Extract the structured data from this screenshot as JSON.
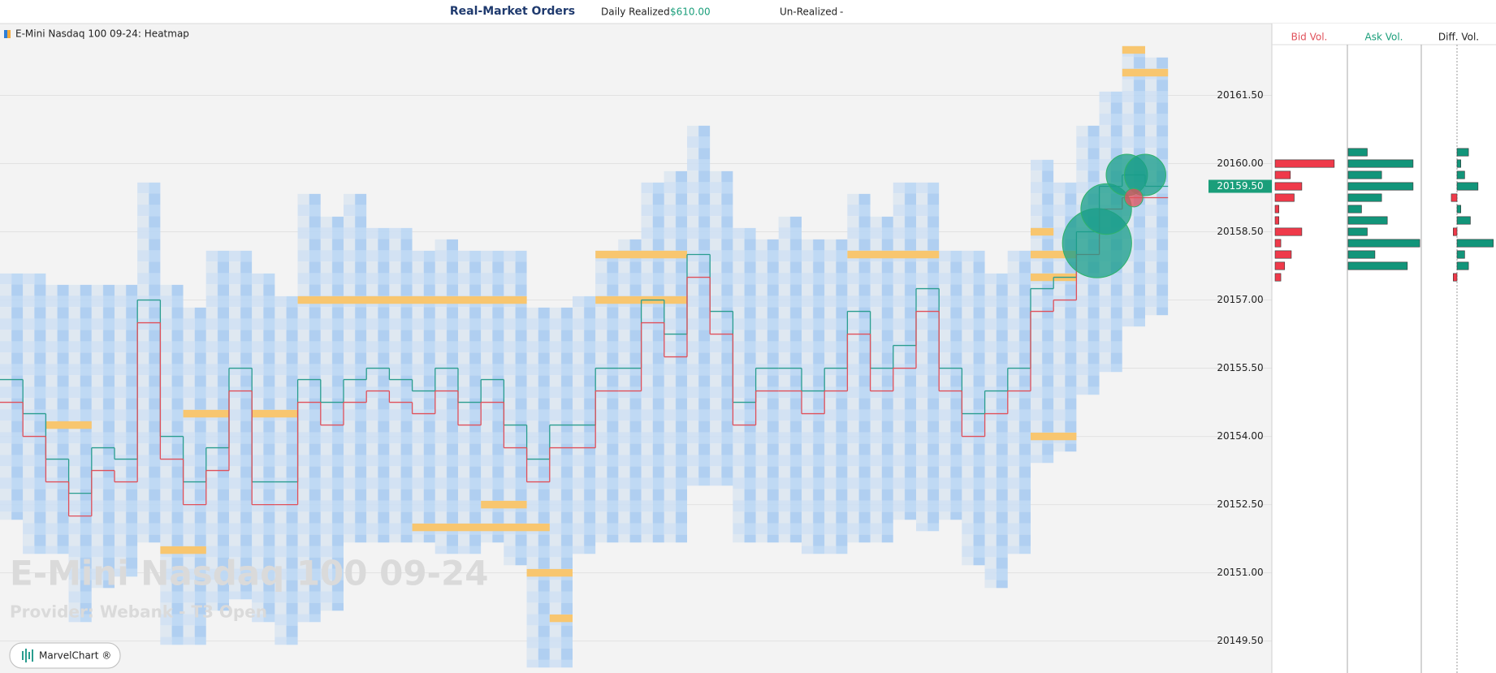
{
  "header": {
    "title": "Real-Market Orders",
    "realized_label": "Daily Realized",
    "realized_value": "$610.00",
    "unrealized_label": "Un-Realized",
    "unrealized_value": "-"
  },
  "chart_data": {
    "type": "heatmap",
    "title": "E-Mini Nasdaq 100 09-24: Heatmap",
    "ylim": [
      20149.0,
      20162.75
    ],
    "yticks": [
      {
        "value": 20161.5,
        "label": "20161.50"
      },
      {
        "value": 20160,
        "label": "20160.00"
      },
      {
        "value": 20158.5,
        "label": "20158.50"
      },
      {
        "value": 20157,
        "label": "20157.00"
      },
      {
        "value": 20155.5,
        "label": "20155.50"
      },
      {
        "value": 20154,
        "label": "20154.00"
      },
      {
        "value": 20152.5,
        "label": "20152.50"
      },
      {
        "value": 20151,
        "label": "20151.00"
      },
      {
        "value": 20149.5,
        "label": "20149.50"
      }
    ],
    "grid": true,
    "high": [
      20157.5,
      20157.5,
      20157.25,
      20157.25,
      20157.25,
      20157.25,
      20159.5,
      20157.25,
      20156.75,
      20158.0,
      20158.0,
      20157.5,
      20157.0,
      20159.25,
      20158.75,
      20159.25,
      20158.5,
      20158.5,
      20158.0,
      20158.25,
      20158.0,
      20158.0,
      20158.0,
      20156.75,
      20156.75,
      20157.0,
      20158.0,
      20158.25,
      20159.5,
      20159.75,
      20160.75,
      20159.75,
      20158.5,
      20158.25,
      20158.75,
      20158.25,
      20158.25,
      20159.25,
      20158.75,
      20159.5,
      20159.5,
      20158.0,
      20158.0,
      20157.5,
      20158.0,
      20160.0,
      20159.5,
      20160.75,
      20161.5,
      20162.5,
      20162.25
    ],
    "low": [
      20152.25,
      20151.5,
      20151.5,
      20150.0,
      20150.75,
      20151.0,
      20151.75,
      20149.5,
      20149.5,
      20150.25,
      20150.5,
      20150.0,
      20149.5,
      20150.0,
      20150.25,
      20151.75,
      20151.75,
      20151.75,
      20151.75,
      20151.5,
      20151.5,
      20151.75,
      20151.25,
      20149.0,
      20149.0,
      20151.5,
      20151.75,
      20151.75,
      20151.75,
      20151.75,
      20153.0,
      20153.0,
      20151.75,
      20151.75,
      20151.75,
      20151.5,
      20151.5,
      20151.75,
      20151.75,
      20152.25,
      20152.0,
      20152.25,
      20151.25,
      20150.75,
      20151.5,
      20153.5,
      20153.75,
      20155.0,
      20155.5,
      20156.5,
      20156.75
    ],
    "orders": [
      {
        "price": 20157.0,
        "start": 13,
        "end": 23
      },
      {
        "price": 20157.0,
        "start": 26,
        "end": 30
      },
      {
        "price": 20158.0,
        "start": 26,
        "end": 30
      },
      {
        "price": 20158.0,
        "start": 37,
        "end": 41
      },
      {
        "price": 20154.5,
        "start": 8,
        "end": 10
      },
      {
        "price": 20154.5,
        "start": 11,
        "end": 13
      },
      {
        "price": 20152.0,
        "start": 18,
        "end": 24
      },
      {
        "price": 20152.5,
        "start": 21,
        "end": 23
      },
      {
        "price": 20151.0,
        "start": 23,
        "end": 25
      },
      {
        "price": 20150.0,
        "start": 24,
        "end": 25
      },
      {
        "price": 20158.5,
        "start": 45,
        "end": 46
      },
      {
        "price": 20158.0,
        "start": 45,
        "end": 47
      },
      {
        "price": 20157.5,
        "start": 45,
        "end": 47
      },
      {
        "price": 20154.0,
        "start": 45,
        "end": 47
      },
      {
        "price": 20162.0,
        "start": 49,
        "end": 51
      },
      {
        "price": 20162.5,
        "start": 49,
        "end": 50
      },
      {
        "price": 20151.5,
        "start": 7,
        "end": 9
      },
      {
        "price": 20154.25,
        "start": 2,
        "end": 4
      }
    ],
    "series": [
      {
        "name": "Ask",
        "color": "#2a9d8f",
        "values": [
          20155.25,
          20154.5,
          20153.5,
          20152.75,
          20153.75,
          20153.5,
          20157.0,
          20154.0,
          20153.0,
          20153.75,
          20155.5,
          20153.0,
          20153.0,
          20155.25,
          20154.75,
          20155.25,
          20155.5,
          20155.25,
          20155.0,
          20155.5,
          20154.75,
          20155.25,
          20154.25,
          20153.5,
          20154.25,
          20154.25,
          20155.5,
          20155.5,
          20157.0,
          20156.25,
          20158.0,
          20156.75,
          20154.75,
          20155.5,
          20155.5,
          20155.0,
          20155.5,
          20156.75,
          20155.5,
          20156.0,
          20157.25,
          20155.5,
          20154.5,
          20155.0,
          20155.5,
          20157.25,
          20157.5,
          20158.5,
          20159.5,
          20159.75,
          20159.5
        ]
      },
      {
        "name": "Bid",
        "color": "#e0505a",
        "values": [
          20154.75,
          20154.0,
          20153.0,
          20152.25,
          20153.25,
          20153.0,
          20156.5,
          20153.5,
          20152.5,
          20153.25,
          20155.0,
          20152.5,
          20152.5,
          20154.75,
          20154.25,
          20154.75,
          20155.0,
          20154.75,
          20154.5,
          20155.0,
          20154.25,
          20154.75,
          20153.75,
          20153.0,
          20153.75,
          20153.75,
          20155.0,
          20155.0,
          20156.5,
          20155.75,
          20157.5,
          20156.25,
          20154.25,
          20155.0,
          20155.0,
          20154.5,
          20155.0,
          20156.25,
          20155.0,
          20155.5,
          20156.75,
          20155.0,
          20154.0,
          20154.5,
          20155.0,
          20156.75,
          20157.0,
          20158.0,
          20159.0,
          20159.25,
          20159.25
        ]
      }
    ],
    "bubbles": [
      {
        "price": 20158.25,
        "col": 47.4,
        "size": 140,
        "color": "#1a9e8a"
      },
      {
        "price": 20159.0,
        "col": 47.8,
        "size": 75,
        "color": "#1a9e8a"
      },
      {
        "price": 20159.75,
        "col": 48.7,
        "size": 50,
        "color": "#1a9e8a"
      },
      {
        "price": 20159.75,
        "col": 49.5,
        "size": 50,
        "color": "#1a9e8a"
      },
      {
        "price": 20159.25,
        "col": 49.0,
        "size": 10,
        "color": "#e0505a"
      }
    ],
    "last_price": {
      "value": 20159.5,
      "label": "20159.50"
    }
  },
  "volume_profile": {
    "bid_title": "Bid Vol.",
    "ask_title": "Ask Vol.",
    "diff_title": "Diff. Vol.",
    "prices": [
      20160.25,
      20160.0,
      20159.75,
      20159.5,
      20159.25,
      20159.0,
      20158.75,
      20158.5,
      20158.25,
      20158.0,
      20157.75,
      20157.5
    ],
    "bid": [
      0,
      62,
      16,
      28,
      20,
      4,
      4,
      28,
      6,
      17,
      10,
      6
    ],
    "ask": [
      20,
      68,
      35,
      68,
      35,
      14,
      41,
      20,
      75,
      28,
      62,
      0
    ],
    "diff": [
      12,
      4,
      8,
      22,
      -6,
      4,
      14,
      -4,
      38,
      8,
      12,
      -4
    ]
  },
  "watermark": {
    "title": "E-Mini Nasdaq 100 09-24",
    "provider": "Provider: Webank - T3 Open"
  },
  "button": {
    "label": "MarvelChart ®"
  }
}
